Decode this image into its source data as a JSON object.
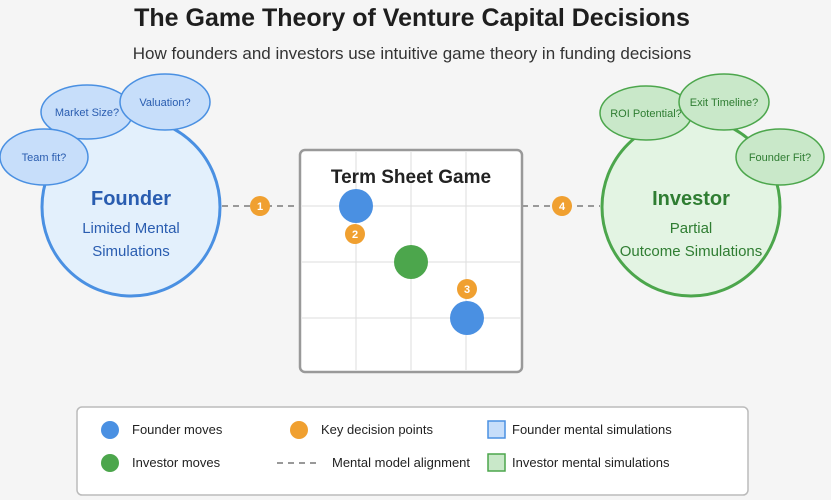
{
  "header": {
    "title": "The Game Theory of Venture Capital Decisions",
    "subtitle": "How founders and investors use intuitive game theory in funding decisions"
  },
  "founder": {
    "title": "Founder",
    "line1": "Limited Mental",
    "line2": "Simulations",
    "thoughts": [
      "Market Size?",
      "Valuation?",
      "Team fit?"
    ]
  },
  "investor": {
    "title": "Investor",
    "line1": "Partial",
    "line2": "Outcome Simulations",
    "thoughts": [
      "ROI Potential?",
      "Exit Timeline?",
      "Founder Fit?"
    ]
  },
  "game": {
    "title": "Term Sheet Game"
  },
  "decision_points": [
    "1",
    "2",
    "3",
    "4"
  ],
  "legend": {
    "founder_moves": "Founder moves",
    "investor_moves": "Investor moves",
    "key_decision_points": "Key decision points",
    "mental_model_alignment": "Mental model alignment",
    "founder_simulations": "Founder mental simulations",
    "investor_simulations": "Investor mental simulations"
  },
  "colors": {
    "founder_blue": "#4a90e2",
    "founder_fill": "#e3f0fc",
    "founder_text": "#2a5db0",
    "investor_green": "#4ca64c",
    "investor_fill": "#e3f4e3",
    "investor_text": "#2f7d32",
    "decision_orange": "#f0a030"
  }
}
